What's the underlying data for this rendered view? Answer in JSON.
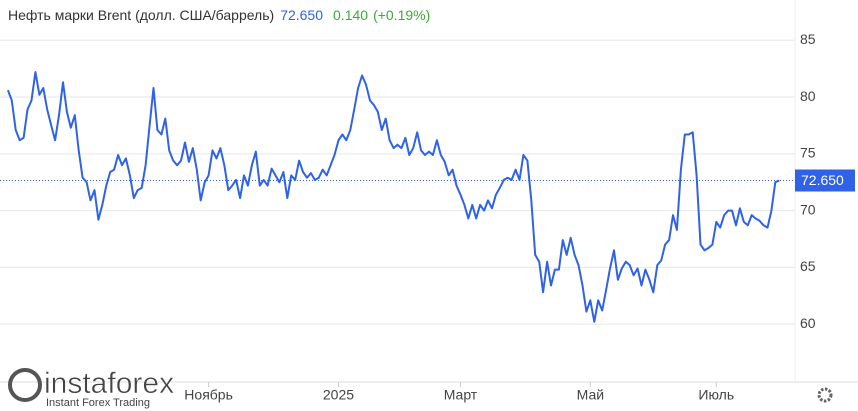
{
  "chart_data": {
    "type": "line",
    "title": "Нефть марки Brent (долл. США/баррель)",
    "current": {
      "value": 72.65,
      "label": "72.650"
    },
    "change": {
      "value": 0.14,
      "label": "0.140"
    },
    "change_pct": {
      "value": 0.19,
      "label": "(+0.19%)"
    },
    "series": [
      {
        "name": "Brent",
        "color": "#2f62e6",
        "values": [
          80.6,
          79.7,
          77.1,
          76.2,
          76.4,
          78.9,
          79.7,
          82.2,
          80.2,
          80.8,
          78.9,
          77.5,
          76.2,
          78.4,
          81.3,
          78.7,
          77.3,
          78.4,
          75.3,
          72.9,
          72.5,
          70.9,
          71.8,
          69.2,
          70.5,
          72.2,
          73.4,
          73.6,
          74.9,
          74.0,
          74.6,
          73.1,
          71.1,
          71.8,
          72.0,
          74.0,
          77.5,
          80.8,
          77.1,
          76.7,
          78.1,
          75.3,
          74.4,
          74.0,
          74.4,
          76.0,
          74.3,
          75.5,
          73.6,
          70.9,
          72.5,
          73.1,
          75.3,
          74.6,
          75.5,
          74.0,
          71.8,
          72.2,
          72.7,
          71.1,
          73.1,
          72.2,
          74.0,
          75.2,
          72.2,
          72.7,
          72.2,
          73.7,
          73.1,
          72.5,
          73.4,
          71.1,
          73.1,
          72.7,
          74.4,
          73.4,
          72.9,
          73.3,
          72.7,
          72.9,
          73.6,
          73.1,
          74.0,
          74.9,
          76.2,
          76.7,
          76.2,
          77.1,
          78.9,
          80.8,
          81.9,
          81.1,
          79.7,
          79.3,
          78.7,
          77.1,
          78.1,
          76.2,
          75.5,
          75.8,
          75.5,
          76.4,
          74.9,
          75.5,
          76.9,
          75.3,
          74.9,
          75.2,
          74.9,
          76.2,
          74.9,
          74.3,
          73.1,
          73.6,
          72.2,
          71.4,
          70.5,
          69.3,
          70.5,
          69.3,
          70.5,
          70.0,
          70.9,
          70.2,
          71.4,
          72.0,
          72.7,
          72.9,
          72.7,
          73.6,
          72.7,
          74.9,
          74.4,
          70.9,
          66.1,
          65.5,
          62.8,
          65.5,
          63.4,
          64.8,
          64.8,
          67.4,
          66.1,
          67.6,
          66.1,
          65.2,
          63.4,
          61.1,
          62.1,
          60.2,
          62.1,
          61.2,
          63.0,
          64.9,
          66.5,
          63.9,
          64.9,
          65.5,
          65.2,
          64.3,
          64.9,
          63.4,
          64.8,
          63.9,
          62.8,
          65.2,
          65.6,
          67.0,
          67.4,
          69.6,
          68.3,
          73.6,
          76.7,
          76.7,
          76.9,
          73.1,
          67.0,
          66.5,
          66.7,
          67.0,
          69.0,
          68.5,
          69.6,
          70.0,
          70.0,
          68.7,
          70.2,
          69.0,
          68.7,
          69.6,
          69.3,
          69.1,
          68.7,
          68.5,
          70.0,
          72.5,
          72.65
        ]
      }
    ],
    "xlim": [
      -2,
      200
    ],
    "xticks": [
      {
        "value": 51,
        "label": "Ноябрь"
      },
      {
        "value": 84,
        "label": "2025"
      },
      {
        "value": 115,
        "label": "Март"
      },
      {
        "value": 148,
        "label": "Май"
      },
      {
        "value": 180,
        "label": "Июль"
      }
    ],
    "ylim": [
      54.9,
      88.55
    ],
    "yticks": [
      60,
      65,
      70,
      75,
      80,
      85
    ],
    "grid": true
  },
  "logo": {
    "name": "instaforex",
    "tagline": "Instant Forex Trading"
  }
}
